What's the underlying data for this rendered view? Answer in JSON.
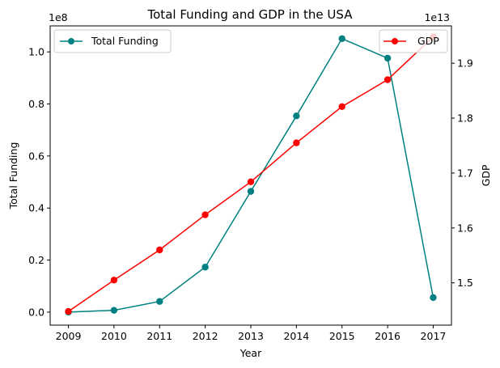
{
  "chart_data": {
    "type": "line",
    "title": "Total Funding and GDP in the USA",
    "xlabel": "Year",
    "ylabel_left": "Total Funding",
    "ylabel_right": "GDP",
    "left_offset_label": "1e8",
    "right_offset_label": "1e13",
    "x": [
      2009,
      2010,
      2011,
      2012,
      2013,
      2014,
      2015,
      2016,
      2017
    ],
    "x_tick_labels": [
      "2009",
      "2010",
      "2011",
      "2012",
      "2013",
      "2014",
      "2015",
      "2016",
      "2017"
    ],
    "left_ylim": [
      -0.05,
      1.1
    ],
    "left_ticks": [
      0.0,
      0.2,
      0.4,
      0.6,
      0.8,
      1.0
    ],
    "left_tick_labels": [
      "0.0",
      "0.2",
      "0.4",
      "0.6",
      "0.8",
      "1.0"
    ],
    "right_ylim": [
      1.423,
      1.968
    ],
    "right_ticks": [
      1.5,
      1.6,
      1.7,
      1.8,
      1.9
    ],
    "right_tick_labels": [
      "1.5",
      "1.6",
      "1.7",
      "1.8",
      "1.9"
    ],
    "grid": false,
    "series": [
      {
        "name": "Total Funding",
        "axis": "left",
        "color": "#008080",
        "legend_position": "top-left",
        "values": [
          0.0,
          0.007,
          0.041,
          0.173,
          0.464,
          0.754,
          1.051,
          0.976,
          0.056
        ]
      },
      {
        "name": "GDP",
        "axis": "right",
        "color": "#ff0000",
        "legend_position": "top-right",
        "values": [
          1.448,
          1.505,
          1.56,
          1.624,
          1.684,
          1.755,
          1.821,
          1.87,
          1.948
        ]
      }
    ]
  }
}
